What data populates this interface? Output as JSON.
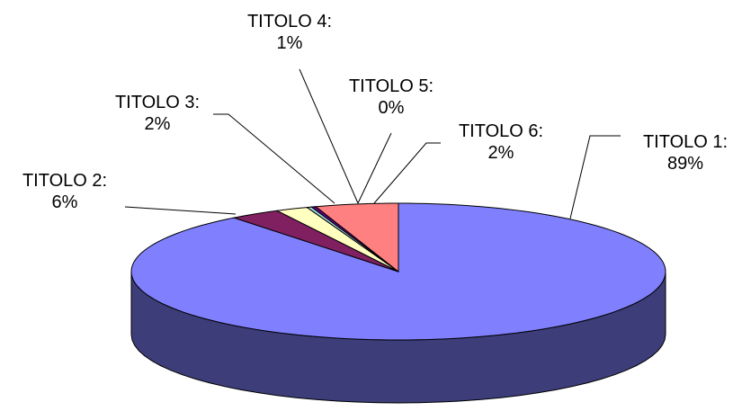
{
  "chart_data": {
    "type": "pie",
    "style": "3d",
    "slices": [
      {
        "label": "TITOLO 1:",
        "value": 89,
        "value_label": "89%",
        "top_color": "#8080ff",
        "side_color": "#3d3d7a"
      },
      {
        "label": "TITOLO 2:",
        "value": 6,
        "value_label": "6%",
        "top_color": "#802060",
        "side_color": "#3f1030"
      },
      {
        "label": "TITOLO 3:",
        "value": 2,
        "value_label": "2%",
        "top_color": "#ffffc0",
        "side_color": "#8a8a60"
      },
      {
        "label": "TITOLO 4:",
        "value": 1,
        "value_label": "1%",
        "top_color": "#a0e0e0",
        "side_color": "#507070"
      },
      {
        "label": "TITOLO 5:",
        "value": 0,
        "value_label": "0%",
        "top_color": "#600080",
        "side_color": "#300040"
      },
      {
        "label": "TITOLO 6:",
        "value": 2,
        "value_label": "2%",
        "top_color": "#ff8080",
        "side_color": "#804040"
      }
    ],
    "legend": "none"
  }
}
